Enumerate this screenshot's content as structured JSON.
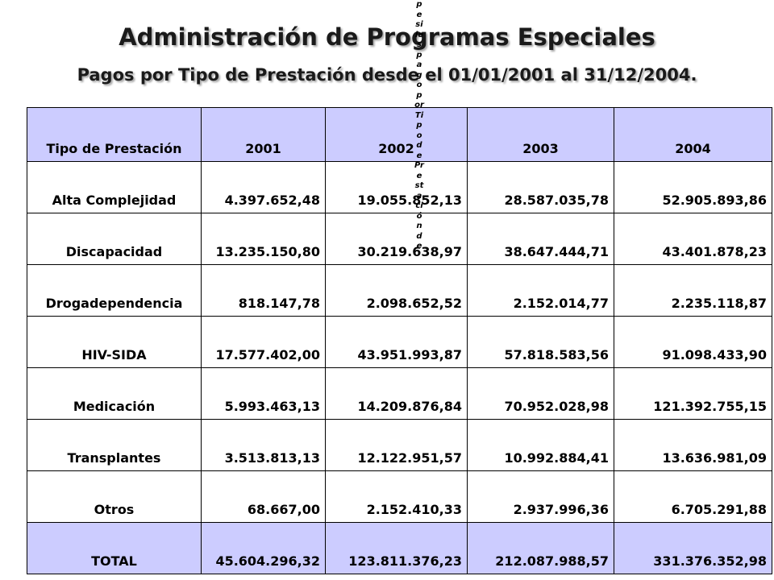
{
  "title": "Administración de Programas Especiales",
  "subtitle": "Pagos por Tipo de Prestación desde el 01/01/2001 al 31/12/2004.",
  "overlay_text": "pesiles pago por Tipo de Prestación de",
  "table": {
    "headers": [
      "Tipo de Prestación",
      "2001",
      "2002",
      "2003",
      "2004"
    ],
    "rows": [
      [
        "Alta Complejidad",
        "4.397.652,48",
        "19.055.852,13",
        "28.587.035,78",
        "52.905.893,86"
      ],
      [
        "Discapacidad",
        "13.235.150,80",
        "30.219.638,97",
        "38.647.444,71",
        "43.401.878,23"
      ],
      [
        "Drogadependencia",
        "818.147,78",
        "2.098.652,52",
        "2.152.014,77",
        "2.235.118,87"
      ],
      [
        "HIV-SIDA",
        "17.577.402,00",
        "43.951.993,87",
        "57.818.583,56",
        "91.098.433,90"
      ],
      [
        "Medicación",
        "5.993.463,13",
        "14.209.876,84",
        "70.952.028,98",
        "121.392.755,15"
      ],
      [
        "Transplantes",
        "3.513.813,13",
        "12.122.951,57",
        "10.992.884,41",
        "13.636.981,09"
      ],
      [
        "Otros",
        "68.667,00",
        "2.152.410,33",
        "2.937.996,36",
        "6.705.291,88"
      ]
    ],
    "total": [
      "TOTAL",
      "45.604.296,32",
      "123.811.376,23",
      "212.087.988,57",
      "331.376.352,98"
    ]
  },
  "colors": {
    "header_bg": "#ccccff",
    "total_bg": "#ccccff"
  }
}
